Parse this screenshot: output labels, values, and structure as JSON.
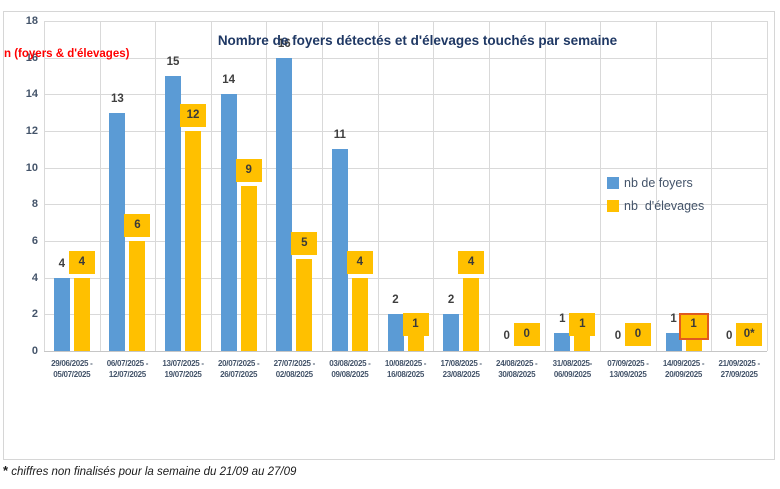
{
  "chart_data": {
    "type": "bar",
    "title": "Nombre de foyers détectés et d'élevages touchés par semaine",
    "y_axis_label": "n (foyers & d'élevages)",
    "ylim": [
      0,
      18
    ],
    "ytick_step": 2,
    "grid": true,
    "legend_position": "middle-right",
    "categories": [
      {
        "line1": "29/06/2025 -",
        "line2": "05/07/2025"
      },
      {
        "line1": "06/07/2025 -",
        "line2": "12/07/2025"
      },
      {
        "line1": "13/07/2025 -",
        "line2": "19/07/2025"
      },
      {
        "line1": "20/07/2025 -",
        "line2": "26/07/2025"
      },
      {
        "line1": "27/07/2025 -",
        "line2": "02/08/2025"
      },
      {
        "line1": "03/08/2025 -",
        "line2": "09/08/2025"
      },
      {
        "line1": "10/08/2025 -",
        "line2": "16/08/2025"
      },
      {
        "line1": "17/08/2025 -",
        "line2": "23/08/2025"
      },
      {
        "line1": "24/08/2025 -",
        "line2": "30/08/2025"
      },
      {
        "line1": "31/08/2025-",
        "line2": "06/09/2025"
      },
      {
        "line1": "07/09/2025 -",
        "line2": "13/09/2025"
      },
      {
        "line1": "14/09/2025 -",
        "line2": "20/09/2025"
      },
      {
        "line1": "21/09/2025 -",
        "line2": "27/09/2025"
      }
    ],
    "series": [
      {
        "name": "nb de foyers",
        "color": "#5B9BD5",
        "values": [
          4,
          13,
          15,
          14,
          16,
          11,
          2,
          2,
          0,
          1,
          0,
          1,
          0
        ],
        "labels": [
          "4",
          "13",
          "15",
          "14",
          "16",
          "11",
          "2",
          "2",
          "0",
          "1",
          "0",
          "1",
          "0"
        ]
      },
      {
        "name": "nb  d'élevages",
        "color": "#FFC000",
        "values": [
          4,
          6,
          12,
          9,
          5,
          4,
          1,
          4,
          0,
          1,
          0,
          1,
          0
        ],
        "labels": [
          "4",
          "6",
          "12",
          "9",
          "5",
          "4",
          "1",
          "4",
          "0",
          "1",
          "0",
          "1",
          "0*"
        ],
        "highlighted_label_index": 11
      }
    ]
  },
  "footnote": {
    "marker": "*",
    "text": " chiffres non finalisés pour la semaine du 21/09 au 27/09"
  },
  "colors": {
    "series_foyers": "#5B9BD5",
    "series_elevages": "#FFC000",
    "title_text": "#1F3864",
    "axis_text": "#44546A",
    "gridline": "#D9D9D9",
    "data_label_text": "#3F3F3F",
    "y_axis_title_text": "#FF0000",
    "highlight_border": "#E05A1E"
  }
}
